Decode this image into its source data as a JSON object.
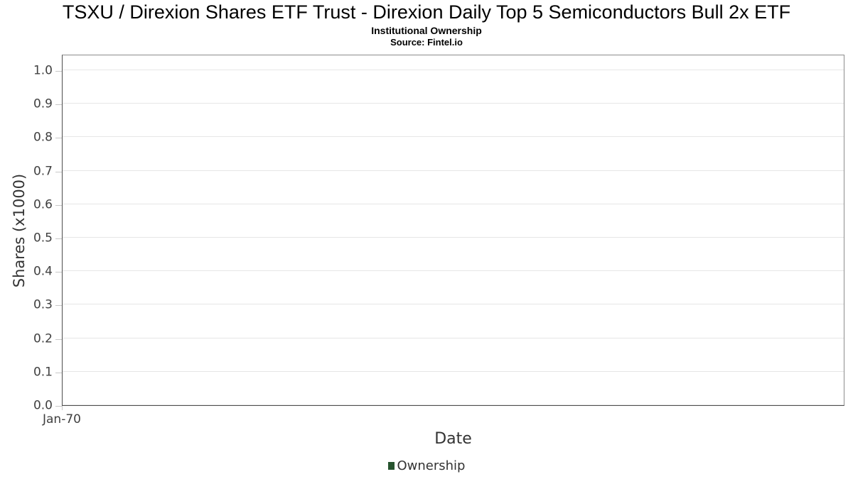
{
  "chart_data": {
    "type": "line",
    "title": "TSXU / Direxion Shares ETF Trust - Direxion Daily Top 5 Semiconductors Bull 2x ETF",
    "subtitle": "Institutional Ownership",
    "source": "Source: Fintel.io",
    "xlabel": "Date",
    "ylabel": "Shares (x1000)",
    "x_ticks": [
      "Jan-70"
    ],
    "y_ticks": [
      0.0,
      0.1,
      0.2,
      0.3,
      0.4,
      0.5,
      0.6,
      0.7,
      0.8,
      0.9,
      1.0
    ],
    "y_tick_labels": [
      "0.0",
      "0.1",
      "0.2",
      "0.3",
      "0.4",
      "0.5",
      "0.6",
      "0.7",
      "0.8",
      "0.9",
      "1.0"
    ],
    "ylim": [
      0,
      1.05
    ],
    "grid": true,
    "legend_position": "bottom",
    "series": [
      {
        "name": "Ownership",
        "color": "#27542f",
        "x": [],
        "values": []
      }
    ]
  },
  "style": {
    "grid_color": "#e6e6e6",
    "axis_border_color": "#8c8c8c",
    "axis_line_color": "#4d4d4d",
    "tick_color": "#c8c8c8",
    "tick_label_color": "#404040",
    "axis_title_color": "#333333",
    "legend_text_color": "#333333",
    "title_color": "#000000",
    "accent_green": "#27542f"
  }
}
